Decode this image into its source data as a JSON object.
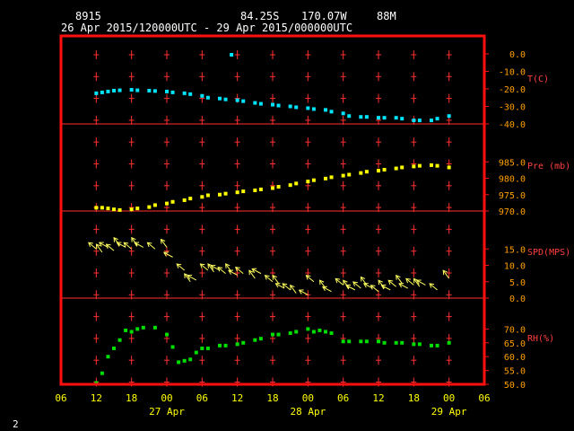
{
  "header": {
    "station": "8915",
    "lat": "84.25S",
    "lon": "170.07W",
    "elev": "88M",
    "range": "26 Apr 2015/120000UTC - 29 Apr 2015/000000UTC"
  },
  "footer": {
    "page": "2"
  },
  "colors": {
    "frame": "#ff1010",
    "grid": "#ff3030",
    "axis_text": "#ffff00",
    "right_text": "#ffa000"
  },
  "chart_data": {
    "type": "line",
    "xaxis": {
      "start": "2015-04-26T06:00Z",
      "end": "2015-04-29T06:00Z",
      "hour_ticks": [
        "06",
        "12",
        "18",
        "00",
        "06",
        "12",
        "18",
        "00",
        "06",
        "12",
        "18",
        "00",
        "06"
      ],
      "date_labels": [
        {
          "text": "27 Apr",
          "at": "2015-04-27T00:00Z"
        },
        {
          "text": "28 Apr",
          "at": "2015-04-28T00:00Z"
        },
        {
          "text": "29 Apr",
          "at": "2015-04-29T00:00Z"
        }
      ]
    },
    "panels": [
      {
        "key": "temp",
        "label": "T(C)",
        "color": "#00e5ff",
        "marker": "square",
        "ylim": [
          -40,
          0
        ],
        "ticks": [
          "0.0",
          "-10.0",
          "-20.0",
          "-30.0",
          "-40.0"
        ],
        "points": [
          [
            "2015-04-26T12:00Z",
            -22.5
          ],
          [
            "2015-04-26T13:00Z",
            -22
          ],
          [
            "2015-04-26T14:00Z",
            -21.5
          ],
          [
            "2015-04-26T15:00Z",
            -21
          ],
          [
            "2015-04-26T16:00Z",
            -20.8
          ],
          [
            "2015-04-26T18:00Z",
            -20.5
          ],
          [
            "2015-04-26T19:00Z",
            -20.8
          ],
          [
            "2015-04-26T21:00Z",
            -21
          ],
          [
            "2015-04-26T22:00Z",
            -21.2
          ],
          [
            "2015-04-27T00:00Z",
            -21.5
          ],
          [
            "2015-04-27T01:00Z",
            -22
          ],
          [
            "2015-04-27T03:00Z",
            -22.5
          ],
          [
            "2015-04-27T04:00Z",
            -23
          ],
          [
            "2015-04-27T06:00Z",
            -24
          ],
          [
            "2015-04-27T07:00Z",
            -25
          ],
          [
            "2015-04-27T09:00Z",
            -25.5
          ],
          [
            "2015-04-27T10:00Z",
            -26
          ],
          [
            "2015-04-27T11:00Z",
            -0.5
          ],
          [
            "2015-04-27T12:00Z",
            -26.5
          ],
          [
            "2015-04-27T13:00Z",
            -27
          ],
          [
            "2015-04-27T15:00Z",
            -28
          ],
          [
            "2015-04-27T16:00Z",
            -28.5
          ],
          [
            "2015-04-27T18:00Z",
            -29
          ],
          [
            "2015-04-27T19:00Z",
            -29.5
          ],
          [
            "2015-04-27T21:00Z",
            -30
          ],
          [
            "2015-04-27T22:00Z",
            -30.5
          ],
          [
            "2015-04-28T00:00Z",
            -31
          ],
          [
            "2015-04-28T01:00Z",
            -31.5
          ],
          [
            "2015-04-28T03:00Z",
            -32
          ],
          [
            "2015-04-28T04:00Z",
            -33
          ],
          [
            "2015-04-28T06:00Z",
            -34
          ],
          [
            "2015-04-28T07:00Z",
            -35.5
          ],
          [
            "2015-04-28T09:00Z",
            -36
          ],
          [
            "2015-04-28T10:00Z",
            -36
          ],
          [
            "2015-04-28T12:00Z",
            -36.5
          ],
          [
            "2015-04-28T13:00Z",
            -36.5
          ],
          [
            "2015-04-28T15:00Z",
            -36.5
          ],
          [
            "2015-04-28T16:00Z",
            -37
          ],
          [
            "2015-04-28T18:00Z",
            -38
          ],
          [
            "2015-04-28T19:00Z",
            -38
          ],
          [
            "2015-04-28T21:00Z",
            -38
          ],
          [
            "2015-04-28T22:00Z",
            -37
          ],
          [
            "2015-04-29T00:00Z",
            -35.5
          ]
        ]
      },
      {
        "key": "pres",
        "label": "Pre (mb)",
        "color": "#ffff00",
        "marker": "square",
        "ylim": [
          970,
          990
        ],
        "ticks": [
          "985.0",
          "980.0",
          "975.0",
          "970.0"
        ],
        "points": [
          [
            "2015-04-26T12:00Z",
            971
          ],
          [
            "2015-04-26T13:00Z",
            971
          ],
          [
            "2015-04-26T14:00Z",
            970.8
          ],
          [
            "2015-04-26T15:00Z",
            970.5
          ],
          [
            "2015-04-26T16:00Z",
            970.3
          ],
          [
            "2015-04-26T18:00Z",
            970.5
          ],
          [
            "2015-04-26T19:00Z",
            970.8
          ],
          [
            "2015-04-26T21:00Z",
            971.2
          ],
          [
            "2015-04-26T22:00Z",
            971.8
          ],
          [
            "2015-04-27T00:00Z",
            972.3
          ],
          [
            "2015-04-27T01:00Z",
            972.8
          ],
          [
            "2015-04-27T03:00Z",
            973.3
          ],
          [
            "2015-04-27T04:00Z",
            973.8
          ],
          [
            "2015-04-27T06:00Z",
            974.3
          ],
          [
            "2015-04-27T07:00Z",
            974.8
          ],
          [
            "2015-04-27T09:00Z",
            975
          ],
          [
            "2015-04-27T10:00Z",
            975.3
          ],
          [
            "2015-04-27T12:00Z",
            975.7
          ],
          [
            "2015-04-27T13:00Z",
            976
          ],
          [
            "2015-04-27T15:00Z",
            976.3
          ],
          [
            "2015-04-27T16:00Z",
            976.6
          ],
          [
            "2015-04-27T18:00Z",
            977
          ],
          [
            "2015-04-27T19:00Z",
            977.4
          ],
          [
            "2015-04-27T21:00Z",
            977.9
          ],
          [
            "2015-04-27T22:00Z",
            978.4
          ],
          [
            "2015-04-28T00:00Z",
            979
          ],
          [
            "2015-04-28T01:00Z",
            979.4
          ],
          [
            "2015-04-28T03:00Z",
            979.9
          ],
          [
            "2015-04-28T04:00Z",
            980.3
          ],
          [
            "2015-04-28T06:00Z",
            980.8
          ],
          [
            "2015-04-28T07:00Z",
            981.1
          ],
          [
            "2015-04-28T09:00Z",
            981.6
          ],
          [
            "2015-04-28T10:00Z",
            982
          ],
          [
            "2015-04-28T12:00Z",
            982.3
          ],
          [
            "2015-04-28T13:00Z",
            982.6
          ],
          [
            "2015-04-28T15:00Z",
            983
          ],
          [
            "2015-04-28T16:00Z",
            983.3
          ],
          [
            "2015-04-28T18:00Z",
            983.6
          ],
          [
            "2015-04-28T19:00Z",
            983.8
          ],
          [
            "2015-04-28T21:00Z",
            984
          ],
          [
            "2015-04-28T22:00Z",
            983.8
          ],
          [
            "2015-04-29T00:00Z",
            983.3
          ]
        ]
      },
      {
        "key": "wind",
        "label": "SPD(MPS)",
        "color": "#ffff60",
        "marker": "arrow",
        "ylim": [
          0,
          20
        ],
        "ticks": [
          "15.0",
          "10.0",
          "5.0",
          "0.0"
        ],
        "points": [
          [
            "2015-04-26T12:00Z",
            15
          ],
          [
            "2015-04-26T13:00Z",
            14
          ],
          [
            "2015-04-26T14:00Z",
            15.5
          ],
          [
            "2015-04-26T15:00Z",
            14.5
          ],
          [
            "2015-04-26T16:00Z",
            16
          ],
          [
            "2015-04-26T17:00Z",
            15.5
          ],
          [
            "2015-04-26T18:00Z",
            15
          ],
          [
            "2015-04-26T19:00Z",
            16
          ],
          [
            "2015-04-26T20:00Z",
            15.5
          ],
          [
            "2015-04-26T22:00Z",
            15
          ],
          [
            "2015-04-27T00:00Z",
            15.5
          ],
          [
            "2015-04-27T01:00Z",
            12.5
          ],
          [
            "2015-04-27T03:00Z",
            8.5
          ],
          [
            "2015-04-27T04:00Z",
            5
          ],
          [
            "2015-04-27T05:00Z",
            5.5
          ],
          [
            "2015-04-27T07:00Z",
            8.5
          ],
          [
            "2015-04-27T08:00Z",
            8
          ],
          [
            "2015-04-27T09:00Z",
            8.5
          ],
          [
            "2015-04-27T10:00Z",
            7.5
          ],
          [
            "2015-04-27T11:00Z",
            8
          ],
          [
            "2015-04-27T12:00Z",
            7
          ],
          [
            "2015-04-27T13:00Z",
            7.5
          ],
          [
            "2015-04-27T15:00Z",
            6
          ],
          [
            "2015-04-27T16:00Z",
            7.5
          ],
          [
            "2015-04-27T18:00Z",
            5
          ],
          [
            "2015-04-27T19:00Z",
            4.5
          ],
          [
            "2015-04-27T20:00Z",
            3
          ],
          [
            "2015-04-27T21:00Z",
            2.5
          ],
          [
            "2015-04-27T22:00Z",
            1.5
          ],
          [
            "2015-04-28T00:00Z",
            1
          ],
          [
            "2015-04-28T01:00Z",
            5
          ],
          [
            "2015-04-28T03:00Z",
            3
          ],
          [
            "2015-04-28T04:00Z",
            2
          ],
          [
            "2015-04-28T06:00Z",
            4
          ],
          [
            "2015-04-28T07:00Z",
            3
          ],
          [
            "2015-04-28T08:00Z",
            2.5
          ],
          [
            "2015-04-28T09:00Z",
            3
          ],
          [
            "2015-04-28T10:00Z",
            4
          ],
          [
            "2015-04-28T11:00Z",
            3
          ],
          [
            "2015-04-28T12:00Z",
            2
          ],
          [
            "2015-04-28T13:00Z",
            3
          ],
          [
            "2015-04-28T14:00Z",
            2.5
          ],
          [
            "2015-04-28T15:00Z",
            3.5
          ],
          [
            "2015-04-28T16:00Z",
            4.5
          ],
          [
            "2015-04-28T17:00Z",
            3
          ],
          [
            "2015-04-28T18:00Z",
            4
          ],
          [
            "2015-04-28T19:00Z",
            3.5
          ],
          [
            "2015-04-28T20:00Z",
            4
          ],
          [
            "2015-04-28T22:00Z",
            2.5
          ],
          [
            "2015-04-29T00:00Z",
            6
          ]
        ]
      },
      {
        "key": "rh",
        "label": "RH(%)",
        "color": "#00dd00",
        "marker": "square",
        "ylim": [
          50,
          75
        ],
        "ticks": [
          "70.0",
          "65.0",
          "60.0",
          "55.0",
          "50.0"
        ],
        "points": [
          [
            "2015-04-26T12:00Z",
            50.5
          ],
          [
            "2015-04-26T13:00Z",
            54
          ],
          [
            "2015-04-26T14:00Z",
            60
          ],
          [
            "2015-04-26T15:00Z",
            63
          ],
          [
            "2015-04-26T16:00Z",
            66
          ],
          [
            "2015-04-26T17:00Z",
            69.5
          ],
          [
            "2015-04-26T18:00Z",
            69
          ],
          [
            "2015-04-26T19:00Z",
            70
          ],
          [
            "2015-04-26T20:00Z",
            70.5
          ],
          [
            "2015-04-26T22:00Z",
            70.5
          ],
          [
            "2015-04-27T00:00Z",
            68
          ],
          [
            "2015-04-27T01:00Z",
            63.5
          ],
          [
            "2015-04-27T02:00Z",
            58
          ],
          [
            "2015-04-27T03:00Z",
            58.5
          ],
          [
            "2015-04-27T04:00Z",
            59
          ],
          [
            "2015-04-27T05:00Z",
            61.5
          ],
          [
            "2015-04-27T06:00Z",
            63
          ],
          [
            "2015-04-27T07:00Z",
            63
          ],
          [
            "2015-04-27T09:00Z",
            64
          ],
          [
            "2015-04-27T10:00Z",
            64
          ],
          [
            "2015-04-27T12:00Z",
            64.5
          ],
          [
            "2015-04-27T13:00Z",
            65
          ],
          [
            "2015-04-27T15:00Z",
            66
          ],
          [
            "2015-04-27T16:00Z",
            66.5
          ],
          [
            "2015-04-27T18:00Z",
            68
          ],
          [
            "2015-04-27T19:00Z",
            68
          ],
          [
            "2015-04-27T21:00Z",
            68.5
          ],
          [
            "2015-04-27T22:00Z",
            69
          ],
          [
            "2015-04-28T00:00Z",
            70
          ],
          [
            "2015-04-28T01:00Z",
            69
          ],
          [
            "2015-04-28T02:00Z",
            69.5
          ],
          [
            "2015-04-28T03:00Z",
            69
          ],
          [
            "2015-04-28T04:00Z",
            68.5
          ],
          [
            "2015-04-28T06:00Z",
            65.5
          ],
          [
            "2015-04-28T07:00Z",
            65.5
          ],
          [
            "2015-04-28T09:00Z",
            65.5
          ],
          [
            "2015-04-28T10:00Z",
            65.5
          ],
          [
            "2015-04-28T12:00Z",
            65.5
          ],
          [
            "2015-04-28T13:00Z",
            65
          ],
          [
            "2015-04-28T15:00Z",
            65
          ],
          [
            "2015-04-28T16:00Z",
            65
          ],
          [
            "2015-04-28T18:00Z",
            64.5
          ],
          [
            "2015-04-28T19:00Z",
            64.5
          ],
          [
            "2015-04-28T21:00Z",
            64
          ],
          [
            "2015-04-28T22:00Z",
            64
          ],
          [
            "2015-04-29T00:00Z",
            65
          ]
        ]
      }
    ]
  }
}
